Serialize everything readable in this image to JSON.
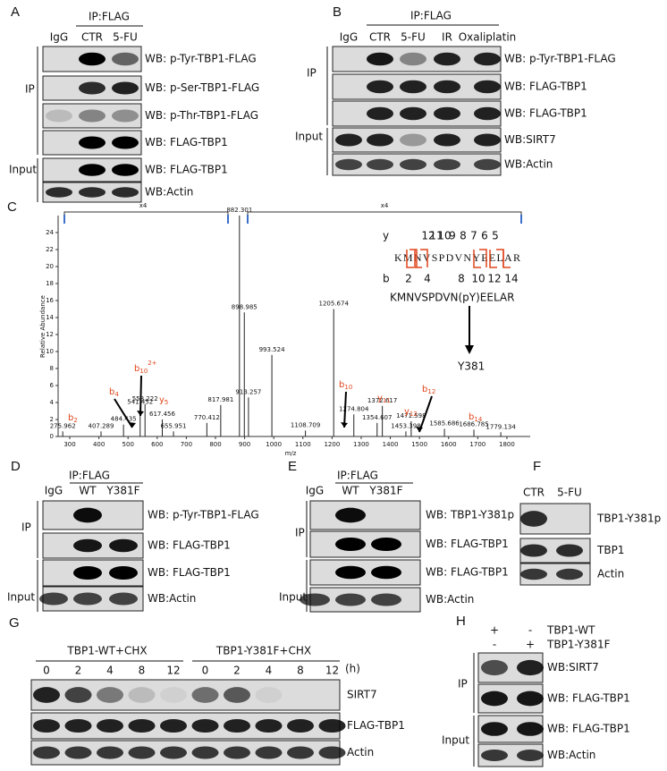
{
  "panel_a": {
    "label": "A",
    "ip_header": "IP:FLAG",
    "lanes": [
      "IgG",
      "CTR",
      "5-FU"
    ],
    "blots": [
      "WB: p-Tyr-TBP1-FLAG",
      "WB: p-Ser-TBP1-FLAG",
      "WB: p-Thr-TBP1-FLAG",
      "WB: FLAG-TBP1",
      "WB: FLAG-TBP1",
      "WB:Actin"
    ],
    "groups": [
      "IP",
      "Input"
    ]
  },
  "panel_b": {
    "label": "B",
    "ip_header": "IP:FLAG",
    "lanes": [
      "IgG",
      "CTR",
      "5-FU",
      "IR",
      "Oxaliplatin"
    ],
    "blots": [
      "WB: p-Tyr-TBP1-FLAG",
      "WB: FLAG-TBP1",
      "WB: FLAG-TBP1",
      "WB:SIRT7",
      "WB:Actin"
    ],
    "groups": [
      "IP",
      "Input"
    ]
  },
  "panel_c": {
    "label": "C",
    "type": "spectrum",
    "y_axis_label": "Relative Abundance",
    "x_axis_label": "m/z",
    "xlim": [
      260,
      1880
    ],
    "ylim": [
      0,
      26
    ],
    "xticks": [
      300,
      400,
      500,
      600,
      700,
      800,
      900,
      1000,
      1100,
      1200,
      1300,
      1400,
      1500,
      1600,
      1700,
      1800
    ],
    "yticks": [
      0,
      2,
      4,
      6,
      8,
      10,
      12,
      14,
      16,
      18,
      20,
      22,
      24
    ],
    "scale_labels": [
      "x4",
      "x4"
    ],
    "peaks": {
      "mz": [
        275.962,
        407.289,
        484.435,
        541.452,
        558.222,
        617.456,
        655.951,
        770.412,
        817.981,
        882.301,
        898.985,
        913.257,
        993.524,
        1108.709,
        1205.674,
        1274.804,
        1354.607,
        1372.617,
        1453.398,
        1471.598,
        1585.686,
        1686.785,
        1779.134
      ],
      "intensity": [
        0.6,
        0.6,
        1.4,
        3.4,
        3.8,
        2.0,
        0.6,
        1.6,
        3.7,
        26,
        14.6,
        4.6,
        9.6,
        0.7,
        15,
        2.6,
        1.6,
        3.6,
        0.6,
        1.8,
        0.9,
        0.8,
        0.5
      ]
    },
    "ions": [
      {
        "ion": "b",
        "index": "2"
      },
      {
        "ion": "b",
        "index": "4"
      },
      {
        "ion": "b",
        "index": "10",
        "charge": "2+"
      },
      {
        "ion": "y",
        "index": "5"
      },
      {
        "ion": "b",
        "index": "10"
      },
      {
        "ion": "y",
        "index": "11"
      },
      {
        "ion": "y",
        "index": "12"
      },
      {
        "ion": "b",
        "index": "12"
      },
      {
        "ion": "b",
        "index": "14"
      }
    ],
    "sequence": {
      "y_label": "y",
      "y_numbers": [
        12,
        11,
        10,
        9,
        8,
        7,
        6,
        5
      ],
      "peptide": "KMNVSPDVNYEELAR",
      "b_label": "b",
      "b_numbers": [
        2,
        4,
        8,
        10,
        12,
        14
      ],
      "modified_peptide": "KMNVSPDVN(pY)EELAR",
      "site": "Y381"
    }
  },
  "panel_d": {
    "label": "D",
    "ip_header": "IP:FLAG",
    "lanes": [
      "IgG",
      "WT",
      "Y381F"
    ],
    "blots": [
      "WB: p-Tyr-TBP1-FLAG",
      "WB: FLAG-TBP1",
      "WB: FLAG-TBP1",
      "WB:Actin"
    ],
    "groups": [
      "IP",
      "Input"
    ]
  },
  "panel_e": {
    "label": "E",
    "ip_header": "IP:FLAG",
    "lanes": [
      "IgG",
      "WT",
      "Y381F"
    ],
    "blots": [
      "WB: TBP1-Y381p",
      "WB: FLAG-TBP1",
      "WB: FLAG-TBP1",
      "WB:Actin"
    ],
    "groups": [
      "IP",
      "Input"
    ]
  },
  "panel_f": {
    "label": "F",
    "lanes": [
      "CTR",
      "5-FU"
    ],
    "blots": [
      "TBP1-Y381p",
      "TBP1",
      "Actin"
    ]
  },
  "panel_g": {
    "label": "G",
    "conditions": [
      "TBP1-WT+CHX",
      "TBP1-Y381F+CHX"
    ],
    "timepoints": [
      0,
      2,
      4,
      8,
      12
    ],
    "time_unit": "(h)",
    "blots": [
      "SIRT7",
      "FLAG-TBP1",
      "Actin"
    ]
  },
  "panel_h": {
    "label": "H",
    "treatments": [
      {
        "signs": [
          "+",
          "-"
        ],
        "name": "TBP1-WT"
      },
      {
        "signs": [
          "-",
          "+"
        ],
        "name": "TBP1-Y381F"
      }
    ],
    "blots": [
      "WB:SIRT7",
      "WB: FLAG-TBP1",
      "WB: FLAG-TBP1",
      "WB:Actin"
    ],
    "groups": [
      "IP",
      "Input"
    ]
  }
}
